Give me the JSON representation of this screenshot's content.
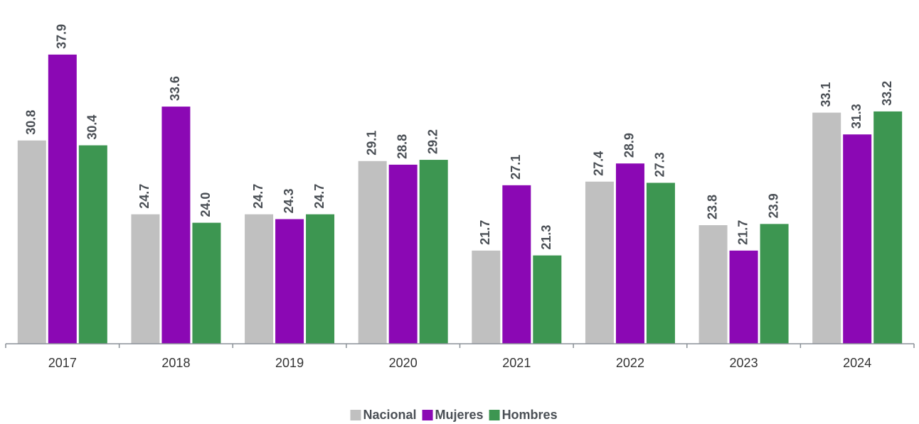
{
  "chart_data": {
    "type": "bar",
    "categories": [
      "2017",
      "2018",
      "2019",
      "2020",
      "2021",
      "2022",
      "2023",
      "2024"
    ],
    "series": [
      {
        "name": "Nacional",
        "color": "#c0c0c0",
        "values": [
          30.8,
          24.7,
          24.7,
          29.1,
          21.7,
          27.4,
          23.8,
          33.1
        ],
        "value_labels": [
          "30.8",
          "24.7",
          "24.7",
          "29.1",
          "21.7",
          "27.4",
          "23.8",
          "33.1"
        ]
      },
      {
        "name": "Mujeres",
        "color": "#8b08b4",
        "values": [
          37.9,
          33.6,
          24.3,
          28.8,
          27.1,
          28.9,
          21.7,
          31.3
        ],
        "value_labels": [
          "37.9",
          "33.6",
          "24.3",
          "28.8",
          "27.1",
          "28.9",
          "21.7",
          "31.3"
        ]
      },
      {
        "name": "Hombres",
        "color": "#3d9651",
        "values": [
          30.4,
          24.0,
          24.7,
          29.2,
          21.3,
          27.3,
          23.9,
          33.2
        ],
        "value_labels": [
          "30.4",
          "24.0",
          "24.7",
          "29.2",
          "21.3",
          "27.3",
          "23.9",
          "33.2"
        ]
      }
    ],
    "ylim": [
      14,
      42
    ],
    "legend": "bottom"
  }
}
